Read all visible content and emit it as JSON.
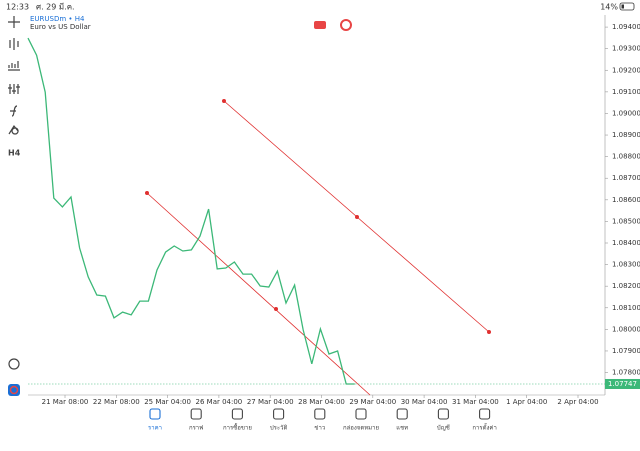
{
  "status_bar": {
    "time": "12:33",
    "date": "ศ. 29 มี.ค.",
    "battery": "14%"
  },
  "chart": {
    "symbol": "EURUSDm • H4",
    "description": "Euro vs US Dollar",
    "timeframe_button": "H4",
    "line_color": "#3cb878",
    "prices": [
      1.09349,
      1.0927,
      1.09099,
      1.08608,
      1.08567,
      1.08613,
      1.08377,
      1.08243,
      1.08159,
      1.08154,
      1.08053,
      1.0808,
      1.08067,
      1.08131,
      1.08131,
      1.08275,
      1.08358,
      1.08386,
      1.08363,
      1.08368,
      1.08432,
      1.08557,
      1.0828,
      1.08284,
      1.08312,
      1.08256,
      1.08256,
      1.08201,
      1.08196,
      1.0827,
      1.08122,
      1.08205,
      1.07997,
      1.0784,
      1.08002,
      1.07886,
      1.079,
      1.07747,
      1.07747
    ],
    "ylim": [
      1.07696,
      1.09456
    ],
    "yticks": [
      {
        "value": 1.094,
        "label": "1.09400"
      },
      {
        "value": 1.093,
        "label": "1.09300"
      },
      {
        "value": 1.092,
        "label": "1.09200"
      },
      {
        "value": 1.091,
        "label": "1.09100"
      },
      {
        "value": 1.09,
        "label": "1.09000"
      },
      {
        "value": 1.089,
        "label": "1.08900"
      },
      {
        "value": 1.088,
        "label": "1.08800"
      },
      {
        "value": 1.087,
        "label": "1.08700"
      },
      {
        "value": 1.086,
        "label": "1.08600"
      },
      {
        "value": 1.085,
        "label": "1.08500"
      },
      {
        "value": 1.084,
        "label": "1.08400"
      },
      {
        "value": 1.083,
        "label": "1.08300"
      },
      {
        "value": 1.082,
        "label": "1.08200"
      },
      {
        "value": 1.081,
        "label": "1.08100"
      },
      {
        "value": 1.08,
        "label": "1.08000"
      },
      {
        "value": 1.079,
        "label": "1.07900"
      },
      {
        "value": 1.078,
        "label": "1.07800"
      }
    ],
    "current_price": {
      "value": 1.07747,
      "label": "1.07747"
    },
    "x_labels": [
      "21 Mar 08:00",
      "22 Mar 08:00",
      "25 Mar 04:00",
      "26 Mar 04:00",
      "27 Mar 04:00",
      "28 Mar 04:00",
      "29 Mar 04:00",
      "30 Mar 04:00",
      "31 Mar 04:00",
      "1 Apr 04:00",
      "2 Apr 04:00"
    ]
  },
  "tabs": [
    {
      "label": "ราคา",
      "active": true
    },
    {
      "label": "กราฟ",
      "active": false
    },
    {
      "label": "การซื้อขาย",
      "active": false
    },
    {
      "label": "ประวัติ",
      "active": false
    },
    {
      "label": "ข่าว",
      "active": false
    },
    {
      "label": "กล่องจดหมาย",
      "active": false
    },
    {
      "label": "แชท",
      "active": false
    },
    {
      "label": "บัญชี",
      "active": false
    },
    {
      "label": "การตั้งค่า",
      "active": false
    }
  ]
}
